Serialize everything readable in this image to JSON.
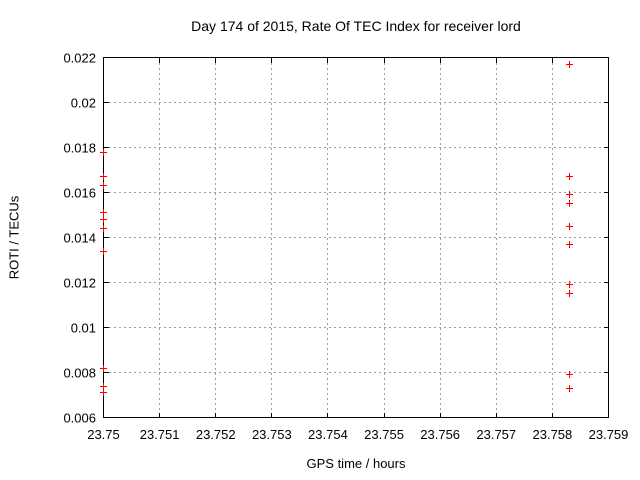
{
  "chart_data": {
    "type": "scatter",
    "title": "Day 174 of 2015, Rate Of TEC Index for receiver lord",
    "xlabel": "GPS time / hours",
    "ylabel": "ROTI / TECUs",
    "xlim": [
      23.75,
      23.759
    ],
    "ylim": [
      0.006,
      0.022
    ],
    "grid": true,
    "legend_position": "none",
    "marker": {
      "shape": "plus",
      "color": "#ff0000",
      "name": "plus-marker"
    },
    "colors": {
      "axis": "#000000",
      "gridline": "#9d9d9d",
      "background": "#ffffff",
      "text": "#000000"
    },
    "xticks": [
      {
        "v": 23.75,
        "label": "23.75"
      },
      {
        "v": 23.751,
        "label": "23.751"
      },
      {
        "v": 23.752,
        "label": "23.752"
      },
      {
        "v": 23.753,
        "label": "23.753"
      },
      {
        "v": 23.754,
        "label": "23.754"
      },
      {
        "v": 23.755,
        "label": "23.755"
      },
      {
        "v": 23.756,
        "label": "23.756"
      },
      {
        "v": 23.757,
        "label": "23.757"
      },
      {
        "v": 23.758,
        "label": "23.758"
      },
      {
        "v": 23.759,
        "label": "23.759"
      }
    ],
    "yticks": [
      {
        "v": 0.006,
        "label": "0.006"
      },
      {
        "v": 0.008,
        "label": "0.008"
      },
      {
        "v": 0.01,
        "label": "0.01"
      },
      {
        "v": 0.012,
        "label": "0.012"
      },
      {
        "v": 0.014,
        "label": "0.014"
      },
      {
        "v": 0.016,
        "label": "0.016"
      },
      {
        "v": 0.018,
        "label": "0.018"
      },
      {
        "v": 0.02,
        "label": "0.02"
      },
      {
        "v": 0.022,
        "label": "0.022"
      }
    ],
    "series": [
      {
        "name": "ROTI",
        "points": [
          [
            23.75,
            0.0178
          ],
          [
            23.75,
            0.0167
          ],
          [
            23.75,
            0.0163
          ],
          [
            23.75,
            0.0151
          ],
          [
            23.75,
            0.0148
          ],
          [
            23.75,
            0.0144
          ],
          [
            23.75,
            0.0134
          ],
          [
            23.75,
            0.0082
          ],
          [
            23.75,
            0.0074
          ],
          [
            23.75,
            0.0071
          ],
          [
            23.7583,
            0.0217
          ],
          [
            23.7583,
            0.0167
          ],
          [
            23.7583,
            0.0159
          ],
          [
            23.7583,
            0.0155
          ],
          [
            23.7583,
            0.0145
          ],
          [
            23.7583,
            0.0137
          ],
          [
            23.7583,
            0.0119
          ],
          [
            23.7583,
            0.0115
          ],
          [
            23.7583,
            0.0079
          ],
          [
            23.7583,
            0.0073
          ]
        ]
      }
    ]
  }
}
